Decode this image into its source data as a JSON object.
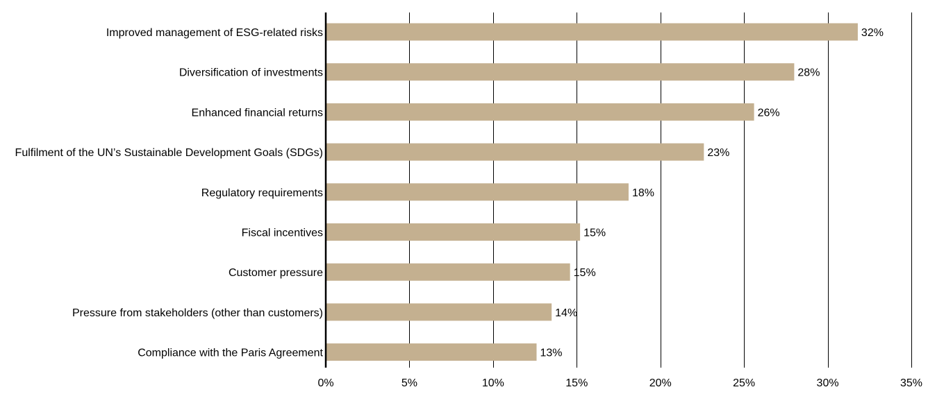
{
  "chart_data": {
    "type": "bar",
    "orientation": "horizontal",
    "categories": [
      "Improved management of ESG-related risks",
      "Diversification of investments",
      "Enhanced financial returns",
      "Fulfilment of the UN’s Sustainable Development Goals (SDGs)",
      "Regulatory requirements",
      "Fiscal incentives",
      "Customer pressure",
      "Pressure from stakeholders (other than customers)",
      "Compliance with the Paris Agreement"
    ],
    "values": [
      31.8,
      28.0,
      25.6,
      22.6,
      18.1,
      15.2,
      14.6,
      13.5,
      12.6
    ],
    "value_labels": [
      "32%",
      "28%",
      "26%",
      "23%",
      "18%",
      "15%",
      "15%",
      "14%",
      "13%"
    ],
    "xlim": [
      0,
      35
    ],
    "x_ticks": [
      0,
      5,
      10,
      15,
      20,
      25,
      30,
      35
    ],
    "x_tick_labels": [
      "0%",
      "5%",
      "10%",
      "15%",
      "20%",
      "25%",
      "30%",
      "35%"
    ],
    "grid": "vertical",
    "legend": "none",
    "colors": {
      "bar": "#c4b090",
      "gridline": "#000000",
      "axis": "#000000",
      "text": "#000000"
    }
  }
}
